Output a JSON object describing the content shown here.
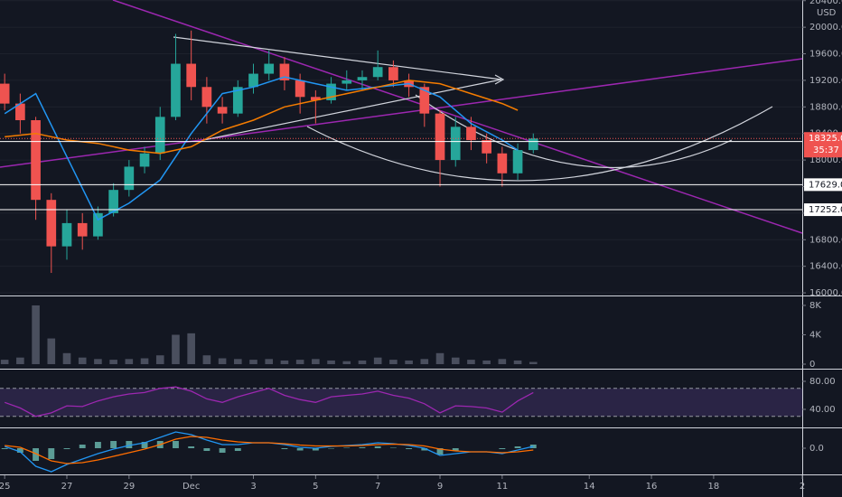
{
  "chart_data": [
    {
      "type": "candlestick",
      "y_unit": "USD",
      "x": [
        0,
        0.5,
        1,
        1.5,
        2,
        2.5,
        3,
        3.5,
        4,
        4.5,
        5,
        5.5,
        6,
        6.5,
        7,
        7.5,
        8,
        8.5,
        9,
        9.5,
        10,
        10.5,
        11,
        11.5,
        12,
        12.5,
        13,
        13.5,
        14,
        14.5,
        15,
        15.5,
        16,
        16.5,
        17
      ],
      "open": [
        19150,
        18850,
        18600,
        17400,
        16700,
        17050,
        16850,
        17200,
        17550,
        17900,
        18100,
        18650,
        19450,
        19100,
        18800,
        18700,
        19100,
        19300,
        19450,
        19200,
        18950,
        18900,
        19150,
        19200,
        19250,
        19400,
        19200,
        19100,
        18700,
        18000,
        18500,
        18300,
        18100,
        17800,
        18150
      ],
      "high": [
        19300,
        19000,
        18650,
        17500,
        17250,
        17200,
        17300,
        17650,
        18000,
        18200,
        18800,
        19900,
        19950,
        19250,
        18950,
        19200,
        19450,
        19650,
        19550,
        19300,
        19050,
        19250,
        19350,
        19350,
        19650,
        19500,
        19300,
        19150,
        18750,
        18650,
        18650,
        18400,
        18200,
        18250,
        18400
      ],
      "low": [
        18750,
        18400,
        17100,
        16300,
        16500,
        16650,
        16800,
        17150,
        17450,
        17800,
        18000,
        18600,
        18900,
        18550,
        18550,
        18650,
        19000,
        19200,
        19050,
        18700,
        18550,
        18850,
        19050,
        19050,
        19200,
        19100,
        18950,
        18500,
        17600,
        17900,
        18150,
        17950,
        17600,
        17700,
        18100
      ],
      "close": [
        18850,
        18600,
        17400,
        16700,
        17050,
        16850,
        17200,
        17550,
        17900,
        18100,
        18650,
        19450,
        19100,
        18800,
        18700,
        19100,
        19300,
        19450,
        19200,
        18950,
        18900,
        19150,
        19200,
        19250,
        19400,
        19200,
        19100,
        18700,
        18000,
        18500,
        18300,
        18100,
        17800,
        18150,
        18325
      ],
      "up_color": "#26a69a",
      "down_color": "#ef5350",
      "lines": [
        {
          "color": "#2196f3",
          "x": [
            0,
            1,
            2,
            3,
            4,
            5,
            6,
            7,
            8,
            9,
            10,
            11,
            12,
            13,
            14,
            15,
            16,
            16.5
          ],
          "values": [
            18700,
            19000,
            18050,
            17100,
            17350,
            17700,
            18400,
            19000,
            19100,
            19250,
            19150,
            19050,
            19100,
            19150,
            18950,
            18550,
            18300,
            18150
          ]
        },
        {
          "color": "#f57c00",
          "x": [
            0,
            1,
            2,
            3,
            4,
            5,
            6,
            7,
            8,
            9,
            10,
            11,
            12,
            13,
            14,
            15,
            16,
            16.5
          ],
          "values": [
            18350,
            18400,
            18300,
            18250,
            18150,
            18100,
            18200,
            18450,
            18600,
            18800,
            18900,
            19000,
            19100,
            19200,
            19150,
            19000,
            18850,
            18750
          ]
        }
      ],
      "price_lines": [
        18279.0,
        17629.0,
        17252.0
      ],
      "price_line_labels": [
        "18279.0",
        "17629.0",
        "17252.0"
      ],
      "last_price": 18325.0,
      "last_price_label": "18325.0",
      "countdown": "35:37",
      "xlim": [
        -0.15,
        25.65
      ],
      "ylim": [
        15960,
        20410
      ],
      "yticks": [
        {
          "value": 16000,
          "label": "16000.0"
        },
        {
          "value": 16400,
          "label": "16400.0"
        },
        {
          "value": 16800,
          "label": "16800.0"
        },
        {
          "value": 17200,
          "label": "17200.0"
        },
        {
          "value": 17600,
          "label": "17600.0"
        },
        {
          "value": 18000,
          "label": "18000.0"
        },
        {
          "value": 18400,
          "label": "18400.0"
        },
        {
          "value": 18800,
          "label": "18800.0"
        },
        {
          "value": 19200,
          "label": "19200.0"
        },
        {
          "value": 19600,
          "label": "19600.0"
        },
        {
          "value": 20000,
          "label": "20000.0"
        },
        {
          "value": 20400,
          "label": "20400.0"
        }
      ]
    },
    {
      "type": "bar",
      "color": "#4a4f5e",
      "x": [
        0,
        0.5,
        1,
        1.5,
        2,
        2.5,
        3,
        3.5,
        4,
        4.5,
        5,
        5.5,
        6,
        6.5,
        7,
        7.5,
        8,
        8.5,
        9,
        9.5,
        10,
        10.5,
        11,
        11.5,
        12,
        12.5,
        13,
        13.5,
        14,
        14.5,
        15,
        15.5,
        16,
        16.5,
        17
      ],
      "values": [
        600,
        900,
        8000,
        3500,
        1500,
        900,
        700,
        600,
        700,
        800,
        1200,
        4000,
        4200,
        1200,
        800,
        700,
        600,
        700,
        500,
        600,
        700,
        500,
        400,
        500,
        900,
        600,
        500,
        700,
        1500,
        900,
        600,
        500,
        700,
        500,
        300
      ],
      "xlim": [
        -0.15,
        25.65
      ],
      "ylim": [
        -370,
        8980
      ],
      "yticks": [
        0,
        {
          "value": 4000,
          "label": "4K"
        },
        {
          "value": 8000,
          "label": "8K"
        }
      ]
    },
    {
      "type": "line",
      "color": "#9c27b0",
      "band": [
        30,
        70
      ],
      "x": [
        0,
        0.5,
        1,
        1.5,
        2,
        2.5,
        3,
        3.5,
        4,
        4.5,
        5,
        5.5,
        6,
        6.5,
        7,
        7.5,
        8,
        8.5,
        9,
        9.5,
        10,
        10.5,
        11,
        11.5,
        12,
        12.5,
        13,
        13.5,
        14,
        14.5,
        15,
        15.5,
        16,
        16.5,
        17
      ],
      "values": [
        50,
        42,
        30,
        35,
        45,
        44,
        52,
        58,
        62,
        64,
        70,
        72,
        66,
        55,
        50,
        58,
        64,
        70,
        60,
        54,
        50,
        58,
        60,
        62,
        66,
        60,
        56,
        48,
        35,
        45,
        44,
        42,
        36,
        52,
        64
      ],
      "xlim": [
        -0.15,
        25.65
      ],
      "ylim": [
        15.5,
        95.5
      ],
      "yticks": [
        {
          "value": 40,
          "label": "40.00"
        },
        {
          "value": 80,
          "label": "80.00"
        }
      ]
    },
    {
      "type": "macd",
      "x": [
        0,
        0.5,
        1,
        1.5,
        2,
        2.5,
        3,
        3.5,
        4,
        4.5,
        5,
        5.5,
        6,
        6.5,
        7,
        7.5,
        8,
        8.5,
        9,
        9.5,
        10,
        10.5,
        11,
        11.5,
        12,
        12.5,
        13,
        13.5,
        14,
        14.5,
        15,
        15.5,
        16,
        16.5,
        17
      ],
      "series": [
        {
          "color": "#2196f3",
          "values": [
            20,
            -40,
            -200,
            -260,
            -180,
            -120,
            -60,
            -10,
            30,
            60,
            120,
            180,
            150,
            90,
            40,
            40,
            60,
            60,
            40,
            10,
            0,
            20,
            30,
            40,
            60,
            50,
            30,
            0,
            -80,
            -60,
            -40,
            -40,
            -60,
            -20,
            20
          ]
        },
        {
          "color": "#ff6d00",
          "values": [
            30,
            10,
            -60,
            -140,
            -170,
            -160,
            -130,
            -90,
            -50,
            -10,
            40,
            100,
            130,
            120,
            90,
            70,
            60,
            60,
            50,
            35,
            25,
            25,
            25,
            30,
            40,
            45,
            40,
            25,
            -10,
            -30,
            -40,
            -40,
            -50,
            -40,
            -20
          ]
        }
      ],
      "histogram": [
        -10,
        -50,
        -140,
        -120,
        -10,
        40,
        70,
        80,
        80,
        70,
        80,
        80,
        20,
        -30,
        -50,
        -30,
        0,
        0,
        -10,
        -25,
        -25,
        -5,
        5,
        10,
        20,
        5,
        -10,
        -25,
        -70,
        -30,
        0,
        0,
        -10,
        20,
        40
      ],
      "histogram_color": "#5b9c96",
      "xlim": [
        -0.15,
        25.65
      ],
      "ylim": [
        -290,
        210
      ],
      "yticks": [
        {
          "value": 0,
          "label": "0.0"
        }
      ],
      "xticks": [
        {
          "value": 0,
          "label": "25"
        },
        {
          "value": 2,
          "label": "27"
        },
        {
          "value": 4,
          "label": "29"
        },
        {
          "value": 6,
          "label": "Dec"
        },
        {
          "value": 8,
          "label": "3"
        },
        {
          "value": 10,
          "label": "5"
        },
        {
          "value": 12,
          "label": "7"
        },
        {
          "value": 14,
          "label": "9"
        },
        {
          "value": 16,
          "label": "11"
        },
        {
          "value": 18.8,
          "label": "14"
        },
        {
          "value": 20.8,
          "label": "16"
        },
        {
          "value": 22.8,
          "label": "18"
        },
        {
          "value": 25.65,
          "label": "2"
        }
      ]
    }
  ]
}
